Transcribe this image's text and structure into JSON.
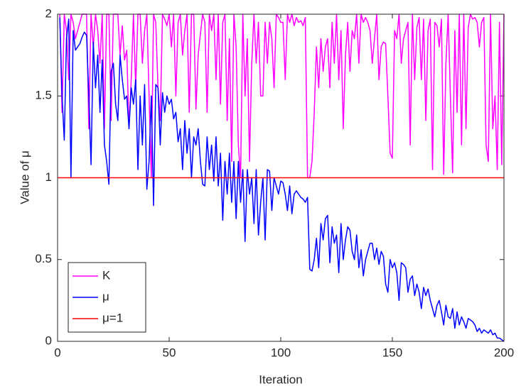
{
  "chart_data": {
    "type": "line",
    "xlabel": "Iteration",
    "ylabel": "Value of μ",
    "xlim": [
      0,
      200
    ],
    "ylim": [
      0,
      2
    ],
    "xticks": [
      0,
      50,
      100,
      150,
      200
    ],
    "yticks": [
      0,
      0.5,
      1,
      1.5,
      2
    ],
    "legend": "lower left",
    "x": [
      1,
      2,
      3,
      4,
      5,
      6,
      7,
      8,
      9,
      10,
      11,
      12,
      13,
      14,
      15,
      16,
      17,
      18,
      19,
      20,
      21,
      22,
      23,
      24,
      25,
      26,
      27,
      28,
      29,
      30,
      31,
      32,
      33,
      34,
      35,
      36,
      37,
      38,
      39,
      40,
      41,
      42,
      43,
      44,
      45,
      46,
      47,
      48,
      49,
      50,
      51,
      52,
      53,
      54,
      55,
      56,
      57,
      58,
      59,
      60,
      61,
      62,
      63,
      64,
      65,
      66,
      67,
      68,
      69,
      70,
      71,
      72,
      73,
      74,
      75,
      76,
      77,
      78,
      79,
      80,
      81,
      82,
      83,
      84,
      85,
      86,
      87,
      88,
      89,
      90,
      91,
      92,
      93,
      94,
      95,
      96,
      97,
      98,
      99,
      100,
      101,
      102,
      103,
      104,
      105,
      106,
      107,
      108,
      109,
      110,
      111,
      112,
      113,
      114,
      115,
      116,
      117,
      118,
      119,
      120,
      121,
      122,
      123,
      124,
      125,
      126,
      127,
      128,
      129,
      130,
      131,
      132,
      133,
      134,
      135,
      136,
      137,
      138,
      139,
      140,
      141,
      142,
      143,
      144,
      145,
      146,
      147,
      148,
      149,
      150,
      151,
      152,
      153,
      154,
      155,
      156,
      157,
      158,
      159,
      160,
      161,
      162,
      163,
      164,
      165,
      166,
      167,
      168,
      169,
      170,
      171,
      172,
      173,
      174,
      175,
      176,
      177,
      178,
      179,
      180,
      181,
      182,
      183,
      184,
      185,
      186,
      187,
      188,
      189,
      190,
      191,
      192,
      193,
      194,
      195,
      196,
      197,
      198,
      199,
      200
    ],
    "series": [
      {
        "name": "K",
        "color": "#ff00ff",
        "values": [
          2,
          1.4,
          2,
          1.9,
          1.6,
          2,
          1.95,
          1.85,
          1.9,
          1.95,
          2,
          2,
          2,
          1.3,
          2,
          1.8,
          2,
          1.9,
          1.7,
          2,
          1.3,
          2,
          2,
          1.35,
          2,
          2,
          2,
          1.75,
          1.93,
          1.72,
          1.78,
          1.3,
          1.6,
          2,
          1.55,
          2,
          2,
          1.7,
          1.9,
          2,
          1.5,
          1.0,
          2,
          1.95,
          1.55,
          1.35,
          2,
          1.97,
          1.93,
          2,
          1.8,
          2,
          1.5,
          1.95,
          2,
          1.75,
          1.9,
          2,
          1.4,
          2,
          2,
          1.42,
          1.75,
          1.88,
          2,
          1.95,
          1.4,
          2,
          1.9,
          2,
          1.6,
          2,
          1.45,
          1.95,
          2,
          1.35,
          1.85,
          1.1,
          2,
          1.8,
          1.2,
          1.0,
          2,
          1.5,
          1.85,
          1.1,
          1.7,
          2,
          1.7,
          1.95,
          1.5,
          1.5,
          1.95,
          1.7,
          1.95,
          1.85,
          1.55,
          2,
          1.98,
          1.95,
          1.95,
          1.6,
          2,
          1.95,
          2,
          1.93,
          1.98,
          1.95,
          1.96,
          1.93,
          1.98,
          1.0,
          1.0,
          1.1,
          1.4,
          1.8,
          1.55,
          1.85,
          1.65,
          1.8,
          1.85,
          1.55,
          1.95,
          1.7,
          2,
          1.6,
          1.9,
          1.3,
          1.75,
          1.95,
          1.65,
          1.9,
          1.85,
          2,
          1.7,
          2,
          1.95,
          1.98,
          1.95,
          1.9,
          1.7,
          1.85,
          2,
          1.6,
          1.8,
          1.83,
          1.82,
          1.5,
          1.15,
          1.12,
          1.9,
          1.85,
          2,
          1.7,
          1.85,
          1.9,
          1.95,
          1.2,
          2,
          1.6,
          1.92,
          1.98,
          1.6,
          1.97,
          1.35,
          1.9,
          1.97,
          1.05,
          1.95,
          1.93,
          1.8,
          1.97,
          1.02,
          1.7,
          2,
          1.5,
          1.03,
          1.9,
          1.4,
          2,
          1.2,
          2,
          1.3,
          1.92,
          2,
          1.97,
          1.98,
          1.95,
          1.8,
          1.95,
          1.98,
          1.2,
          1.1,
          2,
          1.3,
          1.5,
          1.05,
          1.95,
          1.08,
          2
        ]
      },
      {
        "name": "μ",
        "color": "#0000ff",
        "values": [
          1.98,
          1.5,
          1.23,
          1.85,
          1.97,
          1.0,
          1.9,
          1.78,
          1.8,
          1.82,
          1.86,
          1.89,
          1.87,
          1.5,
          1.08,
          1.83,
          1.55,
          1.75,
          1.4,
          1.72,
          1.2,
          1.1,
          0.96,
          1.65,
          1.7,
          1.45,
          1.35,
          1.75,
          1.6,
          1.48,
          1.5,
          1.3,
          1.55,
          1.45,
          1.6,
          1.05,
          1.5,
          1.2,
          1.57,
          0.93,
          1.1,
          1.5,
          0.83,
          1.57,
          1.55,
          1.2,
          1.52,
          1.4,
          1.5,
          1.45,
          1.48,
          1.36,
          1.4,
          1.22,
          1.3,
          1.05,
          1.35,
          1.15,
          1.3,
          1.0,
          1.25,
          1.2,
          1.3,
          1.1,
          0.96,
          0.95,
          1.25,
          1.05,
          1.2,
          0.98,
          1.25,
          0.95,
          1.15,
          0.74,
          1.1,
          0.9,
          1.15,
          0.85,
          1.1,
          0.75,
          1.1,
          0.85,
          1.05,
          0.61,
          1.05,
          0.9,
          1.0,
          0.72,
          1.05,
          0.65,
          0.85,
          1.0,
          0.62,
          1.05,
          1.04,
          0.8,
          1.0,
          0.95,
          0.9,
          0.98,
          0.97,
          0.9,
          0.8,
          0.95,
          0.78,
          0.9,
          0.92,
          0.9,
          0.88,
          0.87,
          0.85,
          0.88,
          0.44,
          0.43,
          0.5,
          0.63,
          0.45,
          0.72,
          0.62,
          0.75,
          0.77,
          0.48,
          0.7,
          0.6,
          0.65,
          0.42,
          0.72,
          0.5,
          0.62,
          0.7,
          0.68,
          0.55,
          0.5,
          0.65,
          0.45,
          0.56,
          0.4,
          0.5,
          0.55,
          0.6,
          0.6,
          0.5,
          0.57,
          0.47,
          0.55,
          0.52,
          0.35,
          0.3,
          0.5,
          0.45,
          0.48,
          0.42,
          0.25,
          0.48,
          0.47,
          0.45,
          0.3,
          0.38,
          0.4,
          0.28,
          0.35,
          0.3,
          0.2,
          0.33,
          0.28,
          0.32,
          0.25,
          0.2,
          0.15,
          0.22,
          0.25,
          0.18,
          0.1,
          0.22,
          0.15,
          0.14,
          0.2,
          0.08,
          0.18,
          0.1,
          0.15,
          0.12,
          0.08,
          0.14,
          0.13,
          0.12,
          0.1,
          0.06,
          0.08,
          0.05,
          0.07,
          0.06,
          0.05,
          0.07,
          0.04,
          0.05,
          0.02,
          0.02,
          0.01,
          0.0
        ]
      },
      {
        "name": "μ=1",
        "color": "#ff0000",
        "x": [
          0,
          200
        ],
        "values": [
          1,
          1
        ]
      }
    ]
  }
}
